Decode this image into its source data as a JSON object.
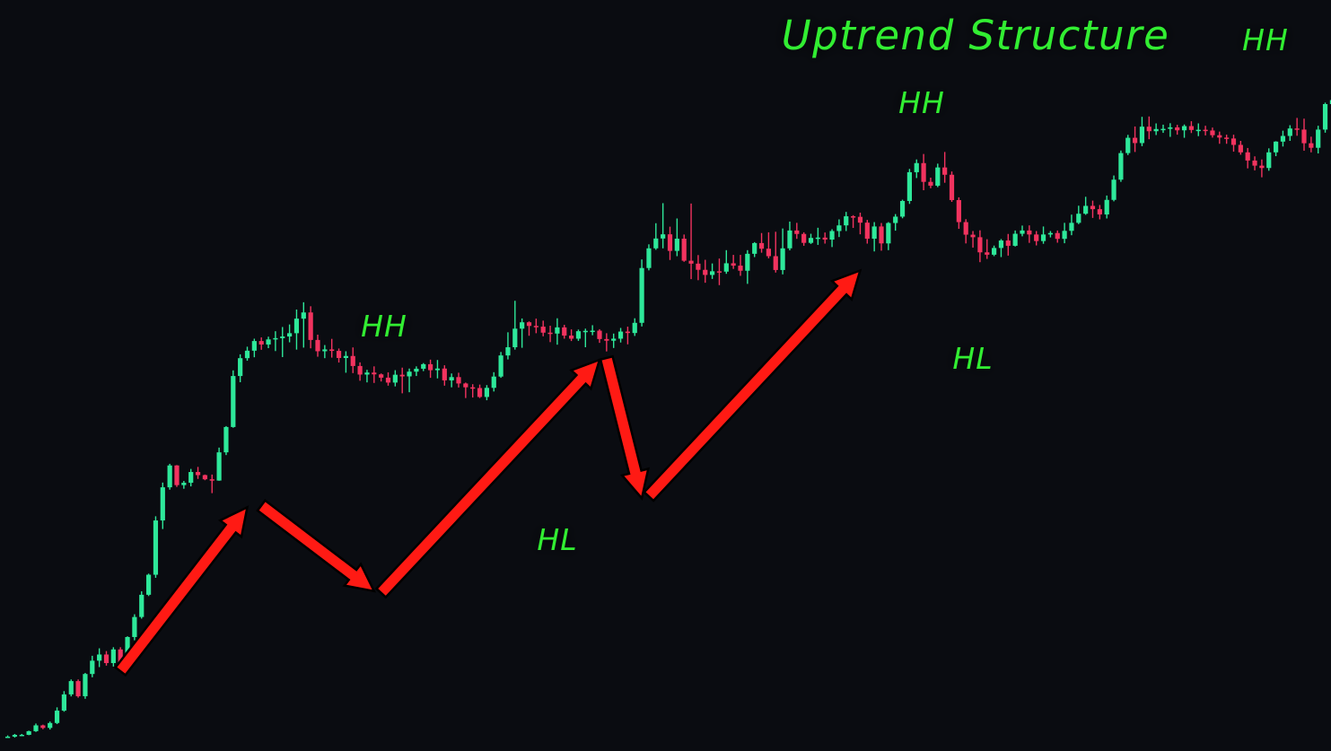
{
  "chart_data": {
    "type": "candlestick",
    "title": "Uptrend Structure",
    "colors": {
      "background": "#0a0c11",
      "up_candle": "#2ee89a",
      "down_candle": "#f2335f",
      "arrow": "#ff1a14",
      "label": "#33ee33"
    },
    "swing_points": [
      {
        "label": "HH",
        "bar": 31,
        "price": 100.0
      },
      {
        "label": "HL",
        "bar": 60,
        "price": 100.2
      },
      {
        "label": "HH",
        "bar": 103,
        "price": 100.2
      },
      {
        "label": "HL",
        "bar": 112,
        "price": 100.4
      },
      {
        "label": "HH",
        "bar": 148,
        "price": 100.6
      }
    ],
    "arrows": [
      {
        "from_bar": 17,
        "from_price": 62,
        "to_bar": 35,
        "to_price": 152
      },
      {
        "from_bar": 37,
        "from_price": 153,
        "to_bar": 53,
        "to_price": 106
      },
      {
        "from_bar": 54,
        "from_price": 105,
        "to_bar": 85,
        "to_price": 233
      },
      {
        "from_bar": 86,
        "from_price": 234,
        "to_bar": 91,
        "to_price": 157
      },
      {
        "from_bar": 92,
        "from_price": 158,
        "to_bar": 122,
        "to_price": 282
      }
    ],
    "candles": [
      [
        1,
        25.9,
        26.1,
        25.9,
        26.8
      ],
      [
        2,
        26.1,
        27.1,
        25.6,
        27.6
      ],
      [
        3,
        27.1,
        27.1,
        26.5,
        27.6
      ],
      [
        4,
        27.1,
        29.1,
        26.9,
        29.4
      ],
      [
        5,
        29.1,
        32.3,
        28.7,
        33.3
      ],
      [
        6,
        32.3,
        30.9,
        30.2,
        32.7
      ],
      [
        7,
        30.9,
        33.6,
        30.0,
        34.4
      ],
      [
        8,
        33.6,
        40.4,
        33.0,
        42.2
      ],
      [
        9,
        40.4,
        49.3,
        39.8,
        51.1
      ],
      [
        10,
        49.3,
        56.6,
        48.2,
        57.5
      ],
      [
        11,
        56.6,
        48.3,
        47.5,
        57.5
      ],
      [
        12,
        48.3,
        60.5,
        46.9,
        61.1
      ],
      [
        13,
        60.5,
        67.8,
        58.7,
        70.5
      ],
      [
        14,
        67.8,
        71.2,
        64.3,
        74.6
      ],
      [
        15,
        71.2,
        66.5,
        65.1,
        73.1
      ],
      [
        16,
        66.5,
        74.0,
        64.6,
        75.2
      ],
      [
        17,
        74.0,
        64.1,
        61.5,
        75.2
      ],
      [
        18,
        64.1,
        80.8,
        62.1,
        81.2
      ],
      [
        19,
        80.8,
        91.8,
        79.0,
        93.3
      ],
      [
        20,
        91.8,
        104.0,
        90.9,
        105.9
      ],
      [
        21,
        104.0,
        115.0,
        103.3,
        115.6
      ],
      [
        22,
        115.0,
        144.8,
        113.3,
        147.1
      ],
      [
        23,
        144.8,
        163.0,
        140.1,
        165.6
      ],
      [
        24,
        163.0,
        175.0,
        161.7,
        175.9
      ],
      [
        25,
        175.0,
        164.2,
        163.2,
        175.2
      ],
      [
        26,
        164.2,
        165.5,
        162.2,
        166.5
      ],
      [
        27,
        165.5,
        171.4,
        163.5,
        173.1
      ],
      [
        28,
        171.4,
        169.7,
        167.6,
        174.2
      ],
      [
        29,
        169.7,
        167.4,
        166.9,
        170.0
      ],
      [
        30,
        167.4,
        166.7,
        159.8,
        170.0
      ],
      [
        31,
        166.7,
        182.2,
        166.6,
        184.8
      ],
      [
        32,
        182.2,
        196.1,
        180.7,
        196.6
      ],
      [
        33,
        196.1,
        224.1,
        195.7,
        227.2
      ],
      [
        34,
        224.1,
        233.9,
        220.7,
        236.0
      ],
      [
        35,
        233.9,
        238.0,
        232.5,
        240.2
      ],
      [
        36,
        238.0,
        243.3,
        234.4,
        244.6
      ],
      [
        37,
        243.3,
        241.4,
        238.5,
        245.3
      ],
      [
        38,
        241.4,
        244.2,
        239.4,
        245.7
      ],
      [
        39,
        244.2,
        244.9,
        237.8,
        248.7
      ],
      [
        40,
        244.9,
        245.8,
        234.5,
        251.0
      ],
      [
        41,
        245.8,
        247.6,
        242.6,
        252.4
      ],
      [
        42,
        247.6,
        255.6,
        238.6,
        260.6
      ],
      [
        43,
        255.6,
        259.0,
        239.7,
        264.6
      ],
      [
        44,
        259.0,
        243.9,
        239.3,
        262.4
      ],
      [
        45,
        243.9,
        237.7,
        234.7,
        246.8
      ],
      [
        46,
        237.7,
        238.7,
        233.9,
        241.1
      ],
      [
        47,
        238.7,
        237.9,
        234.2,
        244.5
      ],
      [
        48,
        237.9,
        234.0,
        231.5,
        239.2
      ],
      [
        49,
        234.0,
        235.1,
        225.9,
        237.7
      ],
      [
        50,
        235.1,
        229.6,
        225.7,
        239.8
      ],
      [
        51,
        229.6,
        224.9,
        221.5,
        231.6
      ],
      [
        52,
        224.9,
        226.0,
        220.6,
        227.5
      ],
      [
        53,
        226.0,
        225.0,
        220.3,
        229.4
      ],
      [
        54,
        225.0,
        223.2,
        221.1,
        225.5
      ],
      [
        55,
        223.2,
        220.5,
        218.8,
        226.1
      ],
      [
        56,
        220.5,
        224.8,
        218.4,
        227.3
      ],
      [
        57,
        224.8,
        223.9,
        214.6,
        228.7
      ],
      [
        58,
        223.9,
        226.5,
        215.2,
        228.2
      ],
      [
        59,
        226.5,
        228.1,
        224.1,
        229.4
      ],
      [
        60,
        228.1,
        230.6,
        226.8,
        231.2
      ],
      [
        61,
        230.6,
        227.3,
        223.1,
        233.1
      ],
      [
        62,
        227.3,
        228.2,
        222.8,
        232.9
      ],
      [
        63,
        228.2,
        221.7,
        218.8,
        230.0
      ],
      [
        64,
        221.7,
        223.5,
        217.9,
        225.5
      ],
      [
        65,
        223.5,
        220.0,
        217.8,
        225.9
      ],
      [
        66,
        220.0,
        217.9,
        212.0,
        220.5
      ],
      [
        67,
        217.9,
        217.5,
        212.3,
        219.6
      ],
      [
        68,
        217.5,
        212.6,
        212.0,
        219.4
      ],
      [
        69,
        212.6,
        217.6,
        210.8,
        219.1
      ],
      [
        70,
        217.6,
        223.8,
        215.6,
        226.2
      ],
      [
        71,
        223.8,
        235.4,
        223.1,
        237.3
      ],
      [
        72,
        235.4,
        239.9,
        233.2,
        248.1
      ],
      [
        73,
        239.9,
        250.1,
        238.6,
        265.4
      ],
      [
        74,
        250.1,
        253.6,
        239.6,
        255.7
      ],
      [
        75,
        253.6,
        251.6,
        246.2,
        254.1
      ],
      [
        76,
        251.6,
        251.2,
        247.6,
        255.6
      ],
      [
        77,
        251.2,
        247.9,
        245.9,
        254.5
      ],
      [
        78,
        247.9,
        247.4,
        242.7,
        251.7
      ],
      [
        79,
        247.4,
        250.8,
        241.3,
        255.8
      ],
      [
        80,
        250.8,
        246.3,
        244.6,
        252.2
      ],
      [
        81,
        246.3,
        244.6,
        243.3,
        249.7
      ],
      [
        82,
        244.6,
        248.7,
        243.4,
        249.6
      ],
      [
        83,
        248.7,
        248.9,
        239.9,
        250.1
      ],
      [
        84,
        248.9,
        249.0,
        246.5,
        252.0
      ],
      [
        85,
        249.0,
        244.4,
        242.3,
        249.8
      ],
      [
        86,
        244.4,
        243.5,
        237.6,
        247.6
      ],
      [
        87,
        243.5,
        244.6,
        239.5,
        247.4
      ],
      [
        88,
        244.6,
        248.5,
        242.5,
        250.5
      ],
      [
        89,
        248.5,
        247.7,
        241.5,
        251.2
      ],
      [
        90,
        247.7,
        253.3,
        246.1,
        255.8
      ],
      [
        91,
        253.3,
        283.4,
        251.3,
        288.1
      ],
      [
        92,
        283.4,
        294.2,
        282.1,
        296.4
      ],
      [
        93,
        294.2,
        299.6,
        293.4,
        308.0
      ],
      [
        94,
        299.6,
        301.9,
        294.2,
        319.0
      ],
      [
        95,
        301.9,
        292.8,
        287.8,
        306.1
      ],
      [
        96,
        292.8,
        299.5,
        289.9,
        310.6
      ],
      [
        97,
        299.5,
        287.4,
        286.8,
        301.8
      ],
      [
        98,
        287.4,
        285.8,
        277.3,
        318.8
      ],
      [
        99,
        285.8,
        282.4,
        276.7,
        290.5
      ],
      [
        100,
        282.4,
        279.6,
        275.3,
        287.9
      ],
      [
        101,
        279.6,
        281.6,
        277.4,
        285.9
      ],
      [
        102,
        281.6,
        281.4,
        274.0,
        288.6
      ],
      [
        103,
        281.4,
        286.0,
        280.2,
        293.2
      ],
      [
        104,
        286.0,
        284.7,
        282.9,
        290.6
      ],
      [
        105,
        284.7,
        281.9,
        279.1,
        290.6
      ],
      [
        106,
        281.9,
        291.2,
        274.7,
        293.2
      ],
      [
        107,
        291.2,
        297.1,
        289.4,
        297.6
      ],
      [
        108,
        297.1,
        294.0,
        291.8,
        302.6
      ],
      [
        109,
        294.0,
        289.9,
        288.7,
        303.0
      ],
      [
        110,
        289.9,
        282.3,
        280.9,
        303.3
      ],
      [
        111,
        282.3,
        294.2,
        279.9,
        305.1
      ],
      [
        112,
        294.2,
        304.0,
        293.1,
        308.9
      ],
      [
        113,
        304.0,
        302.1,
        299.4,
        308.2
      ],
      [
        114,
        302.1,
        297.2,
        295.6,
        303.0
      ],
      [
        115,
        297.2,
        299.9,
        296.6,
        302.2
      ],
      [
        116,
        299.9,
        300.1,
        296.1,
        305.5
      ],
      [
        117,
        300.1,
        299.0,
        296.8,
        302.9
      ],
      [
        118,
        299.0,
        303.7,
        294.9,
        304.7
      ],
      [
        119,
        303.7,
        306.8,
        300.4,
        310.1
      ],
      [
        120,
        306.8,
        311.8,
        303.7,
        314.2
      ],
      [
        121,
        311.8,
        311.5,
        305.4,
        312.4
      ],
      [
        122,
        311.5,
        308.3,
        301.9,
        313.8
      ],
      [
        123,
        308.3,
        299.5,
        296.8,
        309.8
      ],
      [
        124,
        299.5,
        306.2,
        292.5,
        308.6
      ],
      [
        125,
        306.2,
        296.9,
        292.9,
        308.1
      ],
      [
        126,
        296.9,
        308.1,
        293.2,
        308.6
      ],
      [
        127,
        308.1,
        311.6,
        303.9,
        313.0
      ],
      [
        128,
        311.6,
        320.2,
        310.7,
        320.9
      ],
      [
        129,
        320.2,
        336.0,
        318.6,
        337.8
      ],
      [
        130,
        336.0,
        341.0,
        332.8,
        343.0
      ],
      [
        131,
        341.0,
        330.7,
        326.1,
        346.0
      ],
      [
        132,
        330.7,
        328.6,
        327.2,
        333.0
      ],
      [
        133,
        328.6,
        338.6,
        327.8,
        340.7
      ],
      [
        134,
        338.6,
        334.6,
        330.2,
        347.1
      ],
      [
        135,
        334.6,
        320.7,
        319.7,
        336.4
      ],
      [
        136,
        320.7,
        308.6,
        304.9,
        322.2
      ],
      [
        137,
        308.6,
        301.7,
        296.9,
        310.2
      ],
      [
        138,
        301.7,
        300.3,
        294.6,
        303.7
      ],
      [
        139,
        300.3,
        292.0,
        286.6,
        304.1
      ],
      [
        140,
        292.0,
        290.7,
        288.4,
        299.2
      ],
      [
        141,
        290.7,
        294.4,
        289.9,
        295.7
      ],
      [
        142,
        294.4,
        298.5,
        289.4,
        299.3
      ],
      [
        143,
        298.5,
        295.6,
        290.2,
        302.1
      ],
      [
        144,
        295.6,
        302.2,
        295.2,
        304.0
      ],
      [
        145,
        302.2,
        304.0,
        300.8,
        306.7
      ],
      [
        146,
        304.0,
        301.8,
        297.2,
        306.8
      ],
      [
        147,
        301.8,
        298.2,
        295.8,
        303.7
      ],
      [
        148,
        298.2,
        301.8,
        296.7,
        306.2
      ],
      [
        149,
        301.8,
        302.6,
        300.2,
        303.7
      ],
      [
        150,
        302.6,
        299.4,
        297.3,
        304.0
      ],
      [
        151,
        299.4,
        303.8,
        297.0,
        308.2
      ],
      [
        152,
        303.8,
        308.2,
        301.4,
        312.7
      ],
      [
        153,
        308.2,
        313.2,
        307.5,
        317.6
      ],
      [
        154,
        313.2,
        317.5,
        312.6,
        322.5
      ],
      [
        155,
        317.5,
        315.7,
        310.9,
        320.4
      ],
      [
        156,
        315.7,
        312.8,
        310.1,
        318.0
      ],
      [
        157,
        312.8,
        320.8,
        310.6,
        323.2
      ],
      [
        158,
        320.8,
        331.9,
        320.0,
        334.2
      ],
      [
        159,
        331.9,
        346.5,
        330.7,
        347.9
      ],
      [
        160,
        346.5,
        354.9,
        345.4,
        356.5
      ],
      [
        161,
        354.9,
        352.0,
        347.1,
        361.1
      ],
      [
        162,
        352.0,
        361.0,
        350.3,
        366.4
      ],
      [
        163,
        361.0,
        358.5,
        354.1,
        366.6
      ],
      [
        164,
        358.5,
        359.7,
        356.4,
        362.8
      ],
      [
        165,
        359.7,
        359.8,
        357.6,
        362.1
      ],
      [
        166,
        359.8,
        360.6,
        355.4,
        362.9
      ],
      [
        167,
        360.6,
        359.0,
        356.6,
        362.0
      ],
      [
        168,
        359.0,
        361.3,
        354.9,
        362.2
      ],
      [
        169,
        361.3,
        359.2,
        357.5,
        364.0
      ],
      [
        170,
        359.2,
        359.3,
        355.8,
        362.8
      ],
      [
        171,
        359.3,
        358.9,
        356.2,
        361.5
      ],
      [
        172,
        358.9,
        356.3,
        355.0,
        360.5
      ],
      [
        173,
        356.3,
        355.0,
        351.6,
        358.3
      ],
      [
        174,
        355.0,
        354.5,
        351.6,
        356.6
      ],
      [
        175,
        354.5,
        351.0,
        347.3,
        356.6
      ],
      [
        176,
        351.0,
        346.9,
        345.6,
        353.2
      ],
      [
        177,
        346.9,
        342.4,
        338.1,
        349.3
      ],
      [
        178,
        342.4,
        339.6,
        337.0,
        344.7
      ],
      [
        179,
        339.6,
        338.3,
        333.2,
        343.0
      ],
      [
        180,
        338.3,
        346.9,
        336.8,
        349.1
      ],
      [
        181,
        346.9,
        352.8,
        344.8,
        353.0
      ],
      [
        182,
        352.8,
        355.9,
        350.1,
        358.8
      ],
      [
        183,
        355.9,
        360.0,
        353.2,
        361.8
      ],
      [
        184,
        360.0,
        359.4,
        356.0,
        365.8
      ],
      [
        185,
        359.4,
        351.9,
        347.8,
        365.4
      ],
      [
        186,
        351.9,
        349.4,
        346.9,
        355.5
      ],
      [
        187,
        349.4,
        359.4,
        346.3,
        361.5
      ],
      [
        188,
        359.4,
        373.4,
        357.7,
        374.2
      ],
      [
        189,
        373.4,
        375.6,
        371.9,
        377.3
      ]
    ]
  }
}
